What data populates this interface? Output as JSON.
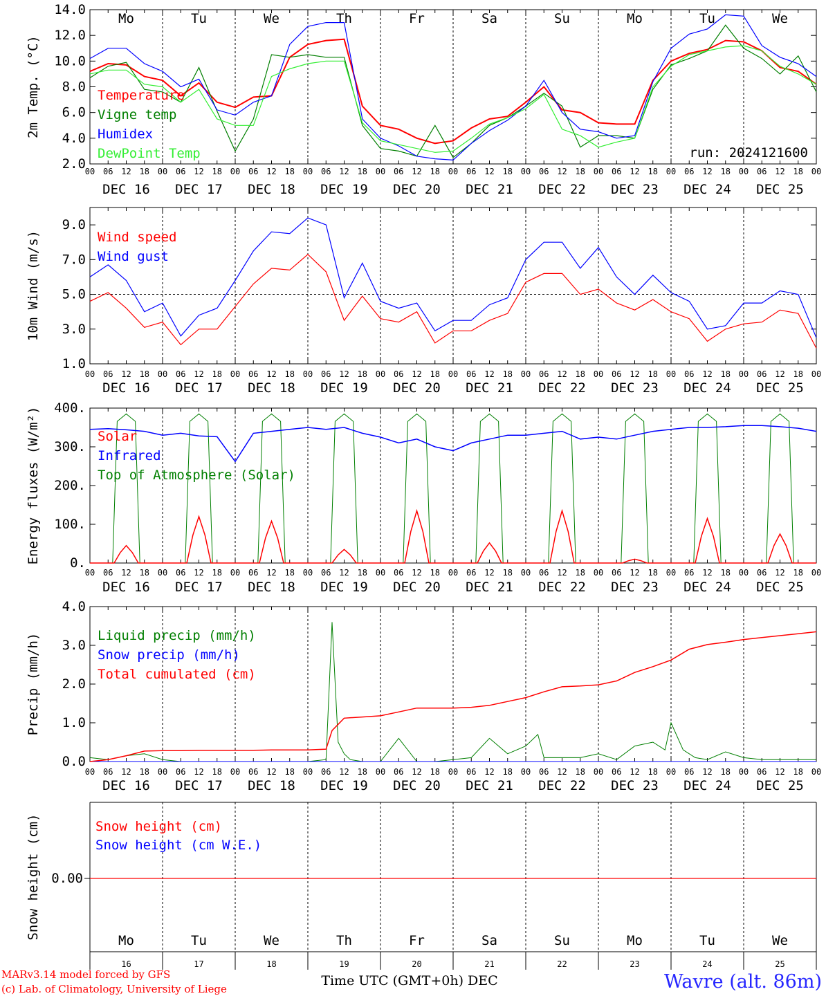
{
  "colors": {
    "red": "#ff0000",
    "green": "#007f00",
    "blue": "#0000ff",
    "lightgreen": "#33ee33",
    "weekend": "#ff0000"
  },
  "weekdays": [
    "Mo",
    "Tu",
    "We",
    "Th",
    "Fr",
    "Sa",
    "Su",
    "Mo",
    "Tu",
    "We"
  ],
  "weekend_flags": [
    false,
    false,
    false,
    false,
    false,
    true,
    true,
    false,
    false,
    false
  ],
  "date_labels": [
    "DEC 16",
    "DEC 17",
    "DEC 18",
    "DEC 19",
    "DEC 20",
    "DEC 21",
    "DEC 22",
    "DEC 23",
    "DEC 24",
    "DEC 25"
  ],
  "hour_labels": [
    "00",
    "06",
    "12",
    "18"
  ],
  "end_hour_label": "00",
  "bottom_day_numbers": [
    "16",
    "17",
    "18",
    "19",
    "20",
    "21",
    "22",
    "23",
    "24",
    "25"
  ],
  "run_label": "run: 2024121600",
  "footer": {
    "model_line": "MARv3.14 model forced by GFS",
    "credit_line": "(c) Lab. of Climatology, University of Liege",
    "axis_label": "Time UTC (GMT+0h) DEC",
    "station": "Wavre (alt. 86m)"
  },
  "chart_data": [
    {
      "type": "line",
      "ylabel": "2m Temp. (°C)",
      "ylim": [
        2.0,
        14.0
      ],
      "yticks": [
        "2.0",
        "4.0",
        "6.0",
        "8.0",
        "10.0",
        "12.0",
        "14.0"
      ],
      "x_units": "hours since DEC 16 00 UTC",
      "xlim": [
        0,
        240
      ],
      "series": [
        {
          "name": "Temperature",
          "color": "red",
          "x": [
            0,
            6,
            12,
            18,
            24,
            30,
            36,
            42,
            48,
            54,
            60,
            66,
            72,
            78,
            84,
            90,
            96,
            102,
            108,
            114,
            120,
            126,
            132,
            138,
            144,
            150,
            156,
            162,
            168,
            174,
            180,
            186,
            192,
            198,
            204,
            210,
            216,
            222,
            228,
            234,
            240
          ],
          "y": [
            9.2,
            9.8,
            9.7,
            8.8,
            8.5,
            7.3,
            8.3,
            6.8,
            6.4,
            7.2,
            7.3,
            10.3,
            11.3,
            11.6,
            11.7,
            6.5,
            5.0,
            4.7,
            4.0,
            3.6,
            3.8,
            4.8,
            5.5,
            5.7,
            6.8,
            8.0,
            6.2,
            6.0,
            5.2,
            5.1,
            5.1,
            8.5,
            10.0,
            10.6,
            10.9,
            11.6,
            11.5,
            10.8,
            9.5,
            9.2,
            8.2
          ]
        },
        {
          "name": "Vigne temp",
          "color": "green",
          "x": [
            0,
            6,
            12,
            18,
            24,
            30,
            36,
            42,
            48,
            54,
            60,
            66,
            72,
            78,
            84,
            90,
            96,
            102,
            108,
            114,
            120,
            126,
            132,
            138,
            144,
            150,
            156,
            162,
            168,
            174,
            180,
            186,
            192,
            198,
            204,
            210,
            216,
            222,
            228,
            234,
            240
          ],
          "y": [
            8.7,
            9.6,
            9.9,
            7.8,
            7.6,
            6.8,
            9.5,
            6.1,
            3.0,
            5.5,
            10.5,
            10.3,
            10.5,
            10.3,
            10.3,
            5.0,
            3.2,
            3.0,
            2.6,
            5.0,
            2.5,
            3.6,
            5.0,
            5.6,
            6.5,
            7.5,
            6.5,
            3.3,
            4.2,
            4.2,
            4.0,
            7.8,
            9.7,
            10.2,
            10.8,
            12.8,
            11.0,
            10.2,
            9.0,
            10.4,
            7.6
          ]
        },
        {
          "name": "Humidex",
          "color": "blue",
          "x": [
            0,
            6,
            12,
            18,
            24,
            30,
            36,
            42,
            48,
            54,
            60,
            66,
            72,
            78,
            84,
            90,
            96,
            102,
            108,
            114,
            120,
            126,
            132,
            138,
            144,
            150,
            156,
            162,
            168,
            174,
            180,
            186,
            192,
            198,
            204,
            210,
            216,
            222,
            228,
            234,
            240
          ],
          "y": [
            10.2,
            11.0,
            11.0,
            9.8,
            9.2,
            8.0,
            8.6,
            6.2,
            5.8,
            6.8,
            7.3,
            11.3,
            12.7,
            13.0,
            13.0,
            5.5,
            4.0,
            3.4,
            2.6,
            2.4,
            2.3,
            3.6,
            4.6,
            5.4,
            6.5,
            8.5,
            6.0,
            4.7,
            4.5,
            4.0,
            4.2,
            8.4,
            11.0,
            12.1,
            12.5,
            13.6,
            13.5,
            11.2,
            10.3,
            9.8,
            8.8
          ]
        },
        {
          "name": "DewPoint Temp",
          "color": "lightgreen",
          "x": [
            0,
            6,
            12,
            18,
            24,
            30,
            36,
            42,
            48,
            54,
            60,
            66,
            72,
            78,
            84,
            90,
            96,
            102,
            108,
            114,
            120,
            126,
            132,
            138,
            144,
            150,
            156,
            162,
            168,
            174,
            180,
            186,
            192,
            198,
            204,
            210,
            216,
            222,
            228,
            234,
            240
          ],
          "y": [
            9.0,
            9.3,
            9.3,
            8.2,
            8.0,
            6.8,
            7.8,
            5.5,
            5.0,
            5.0,
            8.8,
            9.4,
            9.8,
            10.0,
            10.0,
            5.2,
            3.8,
            3.5,
            3.2,
            2.9,
            3.0,
            4.0,
            5.1,
            5.6,
            6.3,
            7.4,
            4.7,
            4.2,
            3.3,
            3.7,
            4.0,
            8.0,
            9.6,
            10.5,
            10.8,
            11.1,
            11.2,
            10.8,
            9.6,
            9.0,
            8.2
          ]
        }
      ]
    },
    {
      "type": "line",
      "ylabel": "10m Wind (m/s)",
      "ylim": [
        1.0,
        10.0
      ],
      "yticks": [
        "1.0",
        "3.0",
        "5.0",
        "7.0",
        "9.0"
      ],
      "reference_line": 5.0,
      "xlim": [
        0,
        240
      ],
      "series": [
        {
          "name": "Wind speed",
          "color": "red",
          "x": [
            0,
            6,
            12,
            18,
            24,
            30,
            36,
            42,
            48,
            54,
            60,
            66,
            72,
            78,
            84,
            90,
            96,
            102,
            108,
            114,
            120,
            126,
            132,
            138,
            144,
            150,
            156,
            162,
            168,
            174,
            180,
            186,
            192,
            198,
            204,
            210,
            216,
            222,
            228,
            234,
            240
          ],
          "y": [
            4.6,
            5.1,
            4.2,
            3.1,
            3.4,
            2.1,
            3.0,
            3.0,
            4.3,
            5.6,
            6.5,
            6.4,
            7.3,
            6.3,
            3.5,
            4.9,
            3.6,
            3.4,
            4.0,
            2.2,
            2.9,
            2.9,
            3.5,
            3.9,
            5.7,
            6.2,
            6.2,
            5.0,
            5.3,
            4.5,
            4.1,
            4.7,
            4.0,
            3.6,
            2.3,
            3.0,
            3.3,
            3.4,
            4.1,
            3.9,
            1.9
          ]
        },
        {
          "name": "Wind gust",
          "color": "blue",
          "x": [
            0,
            6,
            12,
            18,
            24,
            30,
            36,
            42,
            48,
            54,
            60,
            66,
            72,
            78,
            84,
            90,
            96,
            102,
            108,
            114,
            120,
            126,
            132,
            138,
            144,
            150,
            156,
            162,
            168,
            174,
            180,
            186,
            192,
            198,
            204,
            210,
            216,
            222,
            228,
            234,
            240
          ],
          "y": [
            6.0,
            6.7,
            5.8,
            4.0,
            4.5,
            2.6,
            3.8,
            4.2,
            5.8,
            7.5,
            8.6,
            8.5,
            9.4,
            9.0,
            4.8,
            6.8,
            4.6,
            4.2,
            4.5,
            2.9,
            3.5,
            3.5,
            4.4,
            4.8,
            7.0,
            8.0,
            8.0,
            6.5,
            7.7,
            6.0,
            5.0,
            6.1,
            5.1,
            4.6,
            3.0,
            3.2,
            4.5,
            4.5,
            5.2,
            5.0,
            2.5
          ]
        }
      ]
    },
    {
      "type": "line",
      "ylabel": "Energy fluxes (W/m²)",
      "ylim": [
        0,
        400
      ],
      "yticks": [
        "0.",
        "100.",
        "200.",
        "300.",
        "400."
      ],
      "xlim": [
        0,
        240
      ],
      "series": [
        {
          "name": "Solar",
          "color": "red",
          "peaks": [
            45,
            120,
            108,
            35,
            135,
            52,
            135,
            10,
            115,
            75
          ]
        },
        {
          "name": "Infrared",
          "color": "blue",
          "x": [
            0,
            6,
            12,
            18,
            24,
            30,
            36,
            42,
            48,
            54,
            60,
            66,
            72,
            78,
            84,
            90,
            96,
            102,
            108,
            114,
            120,
            126,
            132,
            138,
            144,
            150,
            156,
            162,
            168,
            174,
            180,
            186,
            192,
            198,
            204,
            210,
            216,
            222,
            228,
            234,
            240
          ],
          "y": [
            345,
            347,
            344,
            340,
            330,
            335,
            328,
            326,
            262,
            335,
            340,
            345,
            350,
            345,
            350,
            335,
            325,
            310,
            320,
            300,
            290,
            310,
            320,
            330,
            330,
            335,
            340,
            320,
            325,
            320,
            330,
            340,
            345,
            350,
            350,
            352,
            355,
            355,
            352,
            348,
            340
          ]
        },
        {
          "name": "Top of Atmosphere (Solar)",
          "color": "green",
          "peaks": [
            385,
            385,
            385,
            385,
            385,
            385,
            385,
            385,
            385,
            385
          ]
        }
      ]
    },
    {
      "type": "line",
      "ylabel": "Precip (mm/h)",
      "ylim": [
        0,
        4.0
      ],
      "yticks": [
        "0.0",
        "1.0",
        "2.0",
        "3.0",
        "4.0"
      ],
      "xlim": [
        0,
        240
      ],
      "series": [
        {
          "name": "Liquid precip (mm/h)",
          "color": "green",
          "x": [
            0,
            6,
            12,
            18,
            24,
            30,
            36,
            42,
            48,
            54,
            60,
            66,
            72,
            78,
            80,
            82,
            84,
            86,
            90,
            96,
            102,
            108,
            114,
            120,
            126,
            132,
            138,
            144,
            148,
            150,
            156,
            162,
            168,
            174,
            180,
            186,
            190,
            192,
            196,
            200,
            204,
            210,
            216,
            222,
            228,
            234,
            240
          ],
          "y": [
            0.1,
            0.05,
            0.15,
            0.2,
            0.05,
            0.0,
            0.0,
            0.0,
            0.0,
            0.0,
            0.0,
            0.0,
            0.0,
            0.05,
            3.6,
            0.5,
            0.2,
            0.05,
            0.0,
            0.0,
            0.6,
            0.0,
            0.0,
            0.05,
            0.1,
            0.6,
            0.2,
            0.4,
            0.7,
            0.1,
            0.1,
            0.1,
            0.2,
            0.05,
            0.4,
            0.5,
            0.3,
            1.0,
            0.3,
            0.1,
            0.05,
            0.25,
            0.1,
            0.05,
            0.05,
            0.05,
            0.05
          ]
        },
        {
          "name": "Snow precip (mm/h)",
          "color": "blue",
          "x": [
            0,
            240
          ],
          "y": [
            0.0,
            0.0
          ]
        },
        {
          "name": "Total cumulated (cm)",
          "color": "red",
          "x": [
            0,
            6,
            12,
            18,
            24,
            30,
            36,
            42,
            48,
            54,
            60,
            66,
            72,
            78,
            80,
            84,
            90,
            96,
            102,
            108,
            114,
            120,
            126,
            132,
            138,
            144,
            150,
            156,
            162,
            168,
            174,
            180,
            186,
            192,
            198,
            204,
            210,
            216,
            222,
            228,
            234,
            240
          ],
          "y": [
            0.0,
            0.05,
            0.15,
            0.27,
            0.28,
            0.28,
            0.29,
            0.29,
            0.29,
            0.29,
            0.3,
            0.3,
            0.3,
            0.32,
            0.8,
            1.12,
            1.15,
            1.18,
            1.28,
            1.38,
            1.38,
            1.38,
            1.4,
            1.45,
            1.55,
            1.65,
            1.8,
            1.93,
            1.95,
            1.98,
            2.08,
            2.3,
            2.45,
            2.62,
            2.9,
            3.02,
            3.08,
            3.15,
            3.2,
            3.25,
            3.3,
            3.35
          ]
        }
      ]
    },
    {
      "type": "line",
      "ylabel": "Snow height (cm)",
      "yticks": [
        "0.00"
      ],
      "xlim": [
        0,
        240
      ],
      "series": [
        {
          "name": "Snow height (cm)",
          "color": "red",
          "x": [
            0,
            240
          ],
          "y": [
            0.0,
            0.0
          ]
        },
        {
          "name": "Snow height (cm W.E.)",
          "color": "blue",
          "x": [
            0,
            240
          ],
          "y": [
            0.0,
            0.0
          ]
        }
      ]
    }
  ]
}
